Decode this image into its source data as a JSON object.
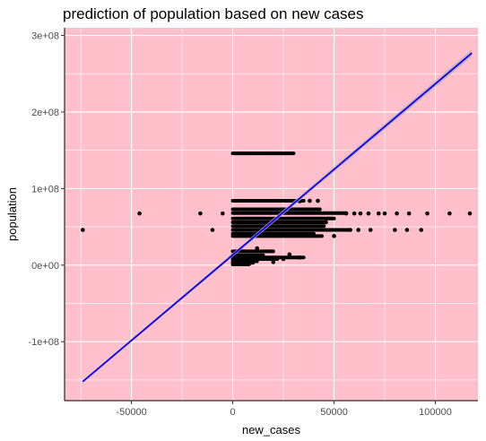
{
  "chart_data": {
    "type": "scatter",
    "title": "prediction of population based on new cases",
    "xlabel": "new_cases",
    "ylabel": "population",
    "xlim": [
      -83000,
      121000
    ],
    "ylim": [
      -177000000,
      310000000
    ],
    "x_ticks": [
      -50000,
      0,
      50000,
      100000
    ],
    "x_tick_labels": [
      "-50000",
      "0",
      "50000",
      "100000"
    ],
    "y_ticks": [
      -100000000,
      0,
      100000000,
      200000000,
      300000000
    ],
    "y_tick_labels": [
      "-1e+08",
      "0e+00",
      "1e+08",
      "2e+08",
      "3e+08"
    ],
    "grid": true,
    "panel_background": "#ffc0cb",
    "grid_color": "#ffffff",
    "point_color": "#000000",
    "line_color": "#0000ff",
    "ribbon_color": "#c8aab8",
    "fit_line": {
      "x": [
        -74000,
        118000
      ],
      "y": [
        -152000000,
        277000000
      ]
    },
    "points": [
      {
        "x": -74000,
        "y": 46000000
      },
      {
        "x": -46000,
        "y": 67500000
      },
      {
        "x": -16000,
        "y": 67500000
      },
      {
        "x": -10000,
        "y": 46000000
      },
      {
        "x": -5000,
        "y": 67500000
      },
      {
        "x": 2000,
        "y": 46000000
      },
      {
        "x": 33000,
        "y": 83500000
      },
      {
        "x": 38000,
        "y": 84000000
      },
      {
        "x": 42000,
        "y": 84000000
      },
      {
        "x": 58000,
        "y": 46000000
      },
      {
        "x": 62000,
        "y": 46000000
      },
      {
        "x": 68000,
        "y": 46000000
      },
      {
        "x": 80000,
        "y": 46000000
      },
      {
        "x": 86000,
        "y": 46000000
      },
      {
        "x": 93000,
        "y": 46000000
      },
      {
        "x": 56000,
        "y": 67500000
      },
      {
        "x": 60000,
        "y": 67500000
      },
      {
        "x": 63000,
        "y": 67500000
      },
      {
        "x": 67000,
        "y": 67500000
      },
      {
        "x": 72000,
        "y": 67500000
      },
      {
        "x": 75000,
        "y": 67500000
      },
      {
        "x": 81000,
        "y": 67500000
      },
      {
        "x": 87000,
        "y": 67500000
      },
      {
        "x": 96000,
        "y": 67500000
      },
      {
        "x": 107000,
        "y": 67500000
      },
      {
        "x": 117000,
        "y": 67500000
      },
      {
        "x": 50000,
        "y": 38000000
      },
      {
        "x": 46000,
        "y": 56000000
      },
      {
        "x": 33000,
        "y": 10000000
      },
      {
        "x": 28000,
        "y": 14000000
      },
      {
        "x": 25000,
        "y": 8000000
      },
      {
        "x": 12000,
        "y": 22000000
      },
      {
        "x": 20000,
        "y": 4000000
      }
    ],
    "bands": [
      {
        "x_start": 0,
        "x_end": 30000,
        "y": 146000000
      },
      {
        "x_start": 0,
        "x_end": 35000,
        "y": 84000000
      },
      {
        "x_start": 0,
        "x_end": 43000,
        "y": 73000000
      },
      {
        "x_start": 0,
        "x_end": 56000,
        "y": 68000000
      },
      {
        "x_start": 0,
        "x_end": 50000,
        "y": 61000000
      },
      {
        "x_start": 0,
        "x_end": 45000,
        "y": 56000000
      },
      {
        "x_start": 0,
        "x_end": 45000,
        "y": 51000000
      },
      {
        "x_start": 0,
        "x_end": 58000,
        "y": 46000000
      },
      {
        "x_start": 0,
        "x_end": 40000,
        "y": 41000000
      },
      {
        "x_start": 0,
        "x_end": 44000,
        "y": 38000000
      },
      {
        "x_start": 0,
        "x_end": 20000,
        "y": 18000000
      },
      {
        "x_start": 0,
        "x_end": 15000,
        "y": 13000000
      },
      {
        "x_start": 0,
        "x_end": 35000,
        "y": 10000000
      },
      {
        "x_start": 0,
        "x_end": 22000,
        "y": 8000000
      },
      {
        "x_start": 0,
        "x_end": 12000,
        "y": 5000000
      },
      {
        "x_start": 0,
        "x_end": 10000,
        "y": 3000000
      },
      {
        "x_start": 0,
        "x_end": 8000,
        "y": 1000000
      }
    ]
  }
}
